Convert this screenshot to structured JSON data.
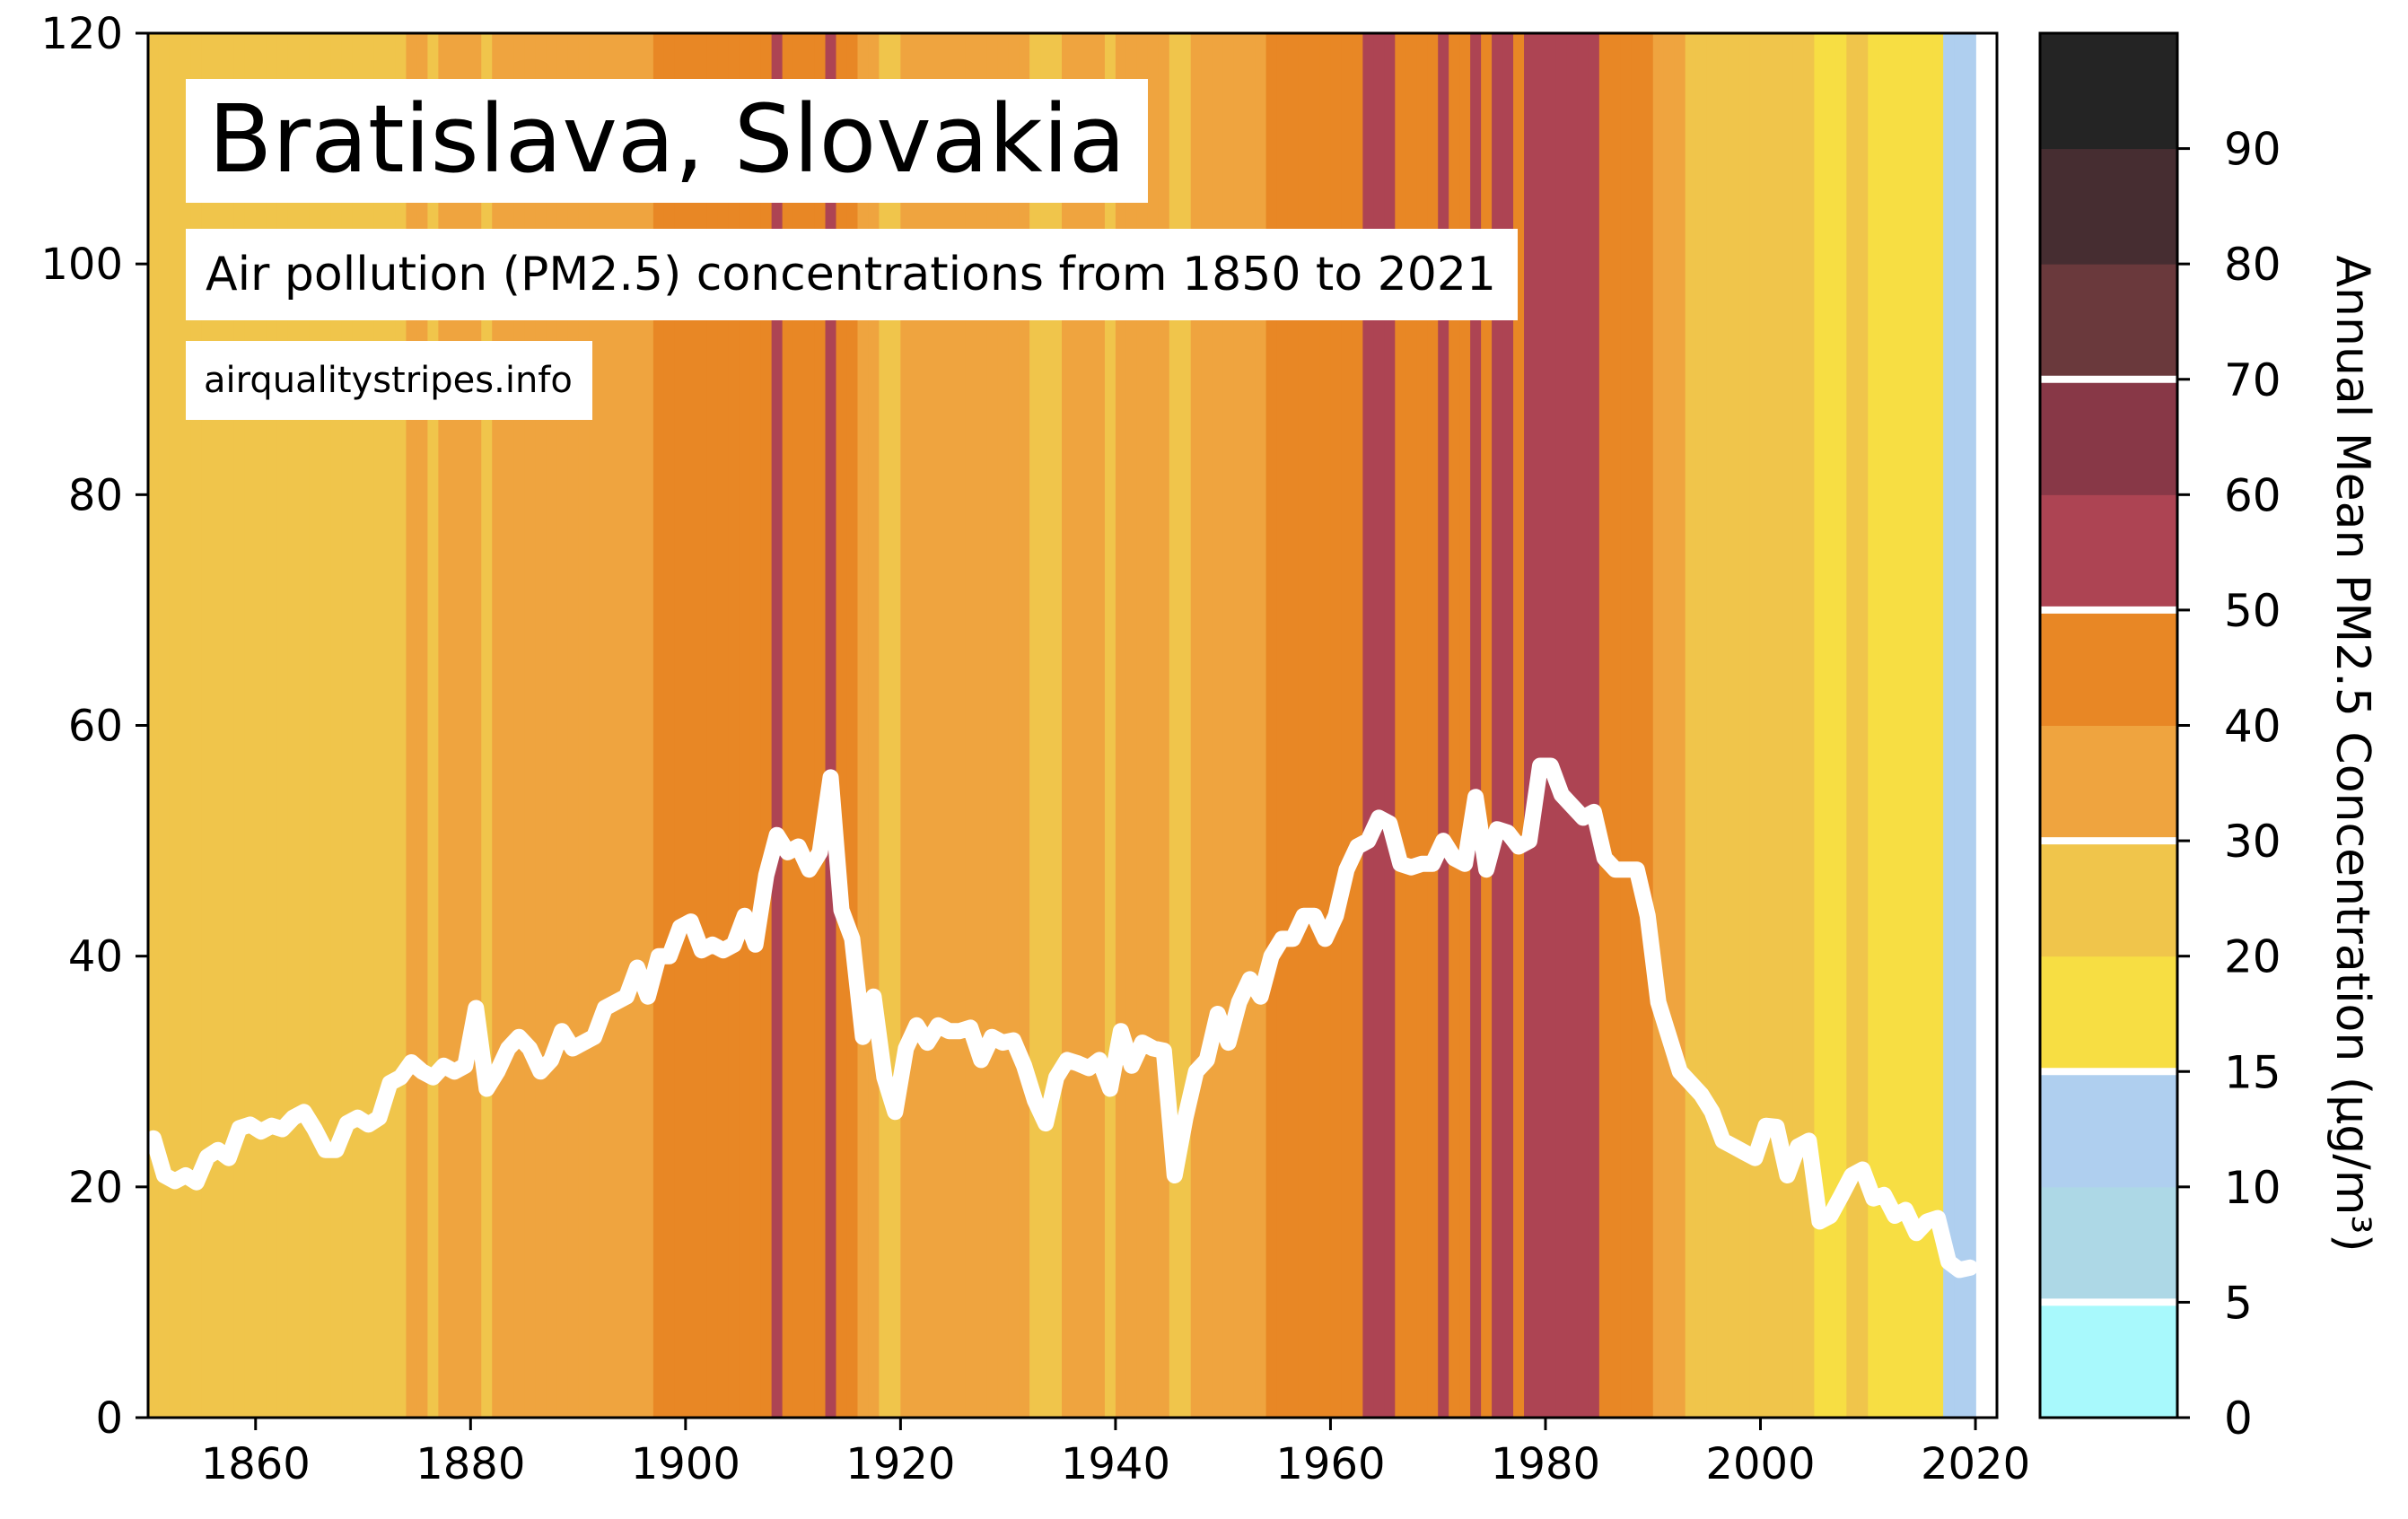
{
  "chart_data": {
    "type": "line",
    "title": "Bratislava, Slovakia",
    "subtitle": "Air pollution (PM2.5) concentrations from 1850 to 2021",
    "source": "airqualitystripes.info",
    "xlim": [
      1850,
      2022
    ],
    "ylim": [
      0,
      120
    ],
    "xticks": [
      1860,
      1880,
      1900,
      1920,
      1940,
      1960,
      1980,
      2000,
      2020
    ],
    "yticks": [
      0,
      20,
      40,
      60,
      80,
      100,
      120
    ],
    "x_start": 1850,
    "line_color": "#ffffff",
    "series": [
      {
        "values": [
          24.2,
          21.0,
          20.5,
          21.0,
          20.4,
          22.6,
          23.2,
          22.5,
          25.1,
          25.4,
          24.8,
          25.3,
          25.0,
          26.0,
          26.5,
          25.0,
          23.2,
          23.2,
          25.5,
          26.0,
          25.4,
          26.0,
          29.0,
          29.5,
          30.8,
          30.0,
          29.5,
          30.5,
          30.0,
          30.5,
          35.5,
          28.5,
          30.0,
          32.0,
          33.0,
          32.0,
          30.0,
          31.0,
          33.5,
          32.0,
          32.5,
          33.0,
          35.5,
          36.0,
          36.5,
          39.0,
          36.5,
          40.0,
          40.0,
          42.5,
          43.0,
          40.5,
          41.0,
          40.5,
          41.0,
          43.5,
          41.0,
          47.0,
          50.5,
          49.0,
          49.5,
          47.5,
          49.0,
          55.5,
          44.0,
          41.5,
          33.0,
          36.5,
          29.5,
          26.5,
          32.0,
          34.0,
          32.5,
          34.0,
          33.5,
          33.5,
          33.8,
          31.0,
          33.0,
          32.5,
          32.7,
          30.5,
          27.5,
          25.5,
          29.5,
          31.0,
          30.7,
          30.3,
          31.0,
          28.5,
          33.5,
          30.5,
          32.5,
          32.0,
          31.8,
          21.0,
          26.0,
          30.0,
          31.0,
          35.0,
          32.5,
          36.0,
          38.0,
          36.5,
          40.0,
          41.5,
          41.5,
          43.5,
          43.5,
          41.5,
          43.5,
          47.5,
          49.5,
          50.0,
          52.0,
          51.5,
          48.0,
          47.7,
          48.0,
          48.0,
          50.0,
          48.5,
          48.0,
          53.8,
          47.5,
          51.0,
          50.7,
          49.5,
          50.0,
          56.5,
          56.5,
          54.0,
          53.0,
          52.0,
          52.5,
          48.5,
          47.5,
          47.5,
          47.5,
          43.5,
          36.0,
          33.0,
          30.0,
          29.0,
          28.0,
          26.5,
          24.0,
          23.5,
          23.0,
          22.5,
          25.3,
          25.2,
          21.0,
          23.5,
          24.0,
          17.0,
          17.5,
          19.2,
          21.0,
          21.5,
          19.0,
          19.3,
          17.5,
          18.0,
          16.0,
          17.0,
          17.3,
          13.5,
          12.8,
          13.0
        ]
      }
    ],
    "stripe_bands": [
      {
        "min": 0,
        "max": 5,
        "color": "#a8f9fc"
      },
      {
        "min": 5,
        "max": 10,
        "color": "#add8e6"
      },
      {
        "min": 10,
        "max": 15,
        "color": "#afcfef"
      },
      {
        "min": 15,
        "max": 20,
        "color": "#f7de43"
      },
      {
        "min": 20,
        "max": 30,
        "color": "#f0c54b"
      },
      {
        "min": 30,
        "max": 40,
        "color": "#efa43f"
      },
      {
        "min": 40,
        "max": 50,
        "color": "#e88725"
      },
      {
        "min": 50,
        "max": 60,
        "color": "#ad4453"
      },
      {
        "min": 60,
        "max": 70,
        "color": "#883847"
      },
      {
        "min": 70,
        "max": 80,
        "color": "#6a393c"
      },
      {
        "min": 80,
        "max": 90,
        "color": "#462d31"
      },
      {
        "min": 90,
        "max": 100,
        "color": "#242424"
      }
    ],
    "colorbar": {
      "label": "Annual Mean PM2.5 Concentration (μg/m³)",
      "tick_labels": [
        "0",
        "5",
        "10",
        "15",
        "20",
        "30",
        "40",
        "50",
        "60",
        "70",
        "80",
        "90"
      ],
      "separators": [
        5,
        15,
        30,
        50,
        70
      ],
      "colors": [
        "#a8f9fc",
        "#add8e6",
        "#afcfef",
        "#f7de43",
        "#f0c54b",
        "#efa43f",
        "#e88725",
        "#ad4453",
        "#883847",
        "#6a393c",
        "#462d31",
        "#242424"
      ]
    },
    "grid": false
  }
}
